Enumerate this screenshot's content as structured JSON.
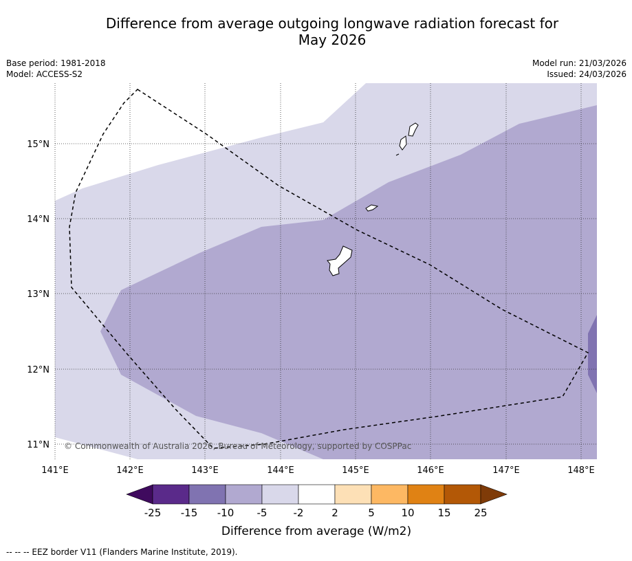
{
  "title": {
    "line1": "Difference from average outgoing longwave radiation forecast for",
    "line2": "May 2026"
  },
  "meta_left": {
    "base_period": "Base period: 1981-2018",
    "model": "Model: ACCESS-S2"
  },
  "meta_right": {
    "model_run": "Model run: 21/03/2026",
    "issued": "Issued: 24/03/2026"
  },
  "map": {
    "lon_labels": [
      "141°E",
      "142°E",
      "143°E",
      "144°E",
      "145°E",
      "146°E",
      "147°E",
      "148°E"
    ],
    "lat_labels": [
      "15°N",
      "14°N",
      "13°N",
      "12°N",
      "11°N"
    ],
    "copyright": "© Commonwealth of Australia 2026, Bureau of Meteorology, supported by COSPPac"
  },
  "colorbar": {
    "ticks": [
      "-25",
      "-15",
      "-10",
      "-5",
      "-2",
      "2",
      "5",
      "10",
      "15",
      "25"
    ],
    "colors": [
      "#3f0a5e",
      "#5a2a8a",
      "#8073b1",
      "#b1a9d0",
      "#d9d8ea",
      "#ffffff",
      "#fde0b6",
      "#fdb863",
      "#e08214",
      "#b35806",
      "#7f3b08"
    ],
    "label": "Difference from average (W/m2)"
  },
  "footer": "--  --  -- EEZ border V11 (Flanders Marine Institute, 2019)."
}
